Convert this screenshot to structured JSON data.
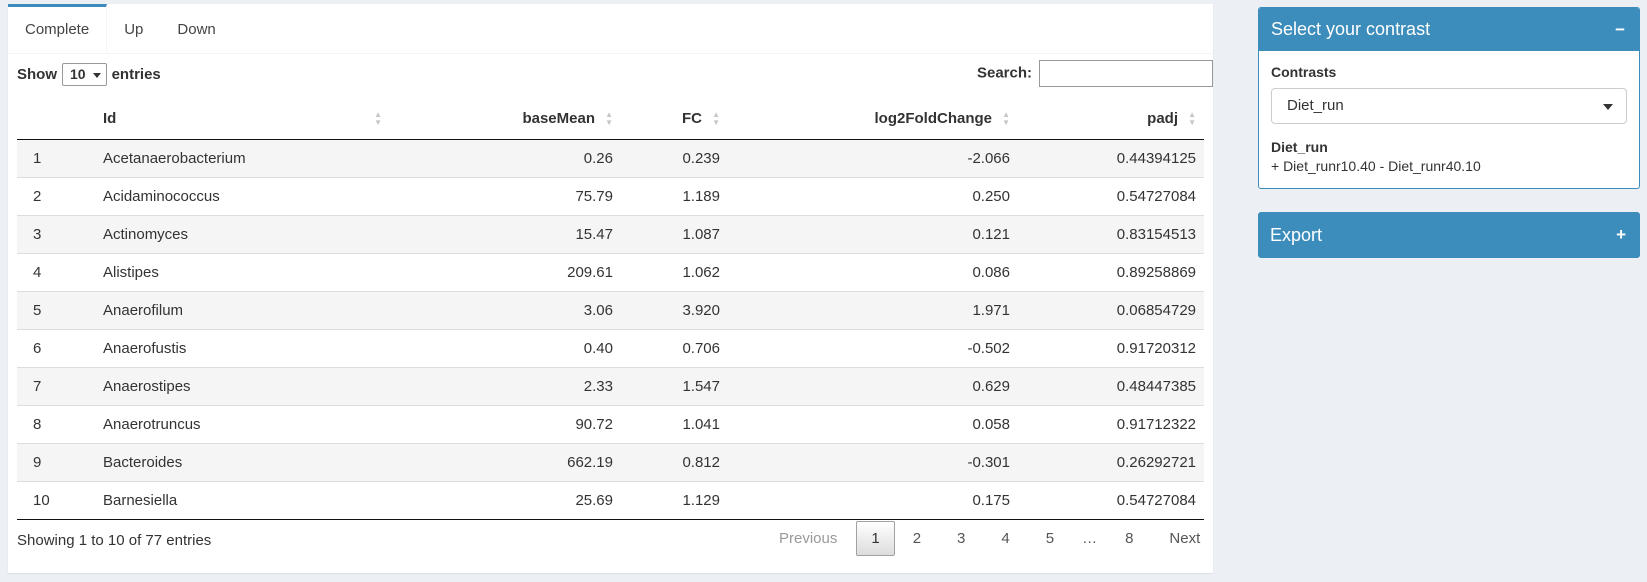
{
  "colors": {
    "primary": "#3c8dbc",
    "page_bg": "#ecf0f5",
    "stripe": "#f5f5f5"
  },
  "tabs": [
    {
      "label": "Complete",
      "active": true
    },
    {
      "label": "Up",
      "active": false
    },
    {
      "label": "Down",
      "active": false
    }
  ],
  "length_control": {
    "show_label": "Show",
    "selected": "10",
    "entries_label": "entries",
    "caret_icon": "caret-down"
  },
  "search": {
    "label": "Search:",
    "value": "",
    "placeholder": ""
  },
  "table": {
    "row_keys": [
      "index",
      "id",
      "baseMean",
      "fc",
      "log2fc",
      "padj"
    ],
    "columns": [
      {
        "label": "",
        "sortable": false,
        "numeric": false
      },
      {
        "label": "Id",
        "sortable": true,
        "numeric": false
      },
      {
        "label": "baseMean",
        "sortable": true,
        "numeric": true
      },
      {
        "label": "FC",
        "sortable": true,
        "numeric": true
      },
      {
        "label": "log2FoldChange",
        "sortable": true,
        "numeric": true
      },
      {
        "label": "padj",
        "sortable": true,
        "numeric": true
      }
    ],
    "sort_icons": {
      "asc": "▲",
      "desc": "▼"
    },
    "rows": [
      {
        "index": "1",
        "id": "Acetanaerobacterium",
        "baseMean": "0.26",
        "fc": "0.239",
        "log2fc": "-2.066",
        "padj": "0.44394125"
      },
      {
        "index": "2",
        "id": "Acidaminococcus",
        "baseMean": "75.79",
        "fc": "1.189",
        "log2fc": "0.250",
        "padj": "0.54727084"
      },
      {
        "index": "3",
        "id": "Actinomyces",
        "baseMean": "15.47",
        "fc": "1.087",
        "log2fc": "0.121",
        "padj": "0.83154513"
      },
      {
        "index": "4",
        "id": "Alistipes",
        "baseMean": "209.61",
        "fc": "1.062",
        "log2fc": "0.086",
        "padj": "0.89258869"
      },
      {
        "index": "5",
        "id": "Anaerofilum",
        "baseMean": "3.06",
        "fc": "3.920",
        "log2fc": "1.971",
        "padj": "0.06854729"
      },
      {
        "index": "6",
        "id": "Anaerofustis",
        "baseMean": "0.40",
        "fc": "0.706",
        "log2fc": "-0.502",
        "padj": "0.91720312"
      },
      {
        "index": "7",
        "id": "Anaerostipes",
        "baseMean": "2.33",
        "fc": "1.547",
        "log2fc": "0.629",
        "padj": "0.48447385"
      },
      {
        "index": "8",
        "id": "Anaerotruncus",
        "baseMean": "90.72",
        "fc": "1.041",
        "log2fc": "0.058",
        "padj": "0.91712322"
      },
      {
        "index": "9",
        "id": "Bacteroides",
        "baseMean": "662.19",
        "fc": "0.812",
        "log2fc": "-0.301",
        "padj": "0.26292721"
      },
      {
        "index": "10",
        "id": "Barnesiella",
        "baseMean": "25.69",
        "fc": "1.129",
        "log2fc": "0.175",
        "padj": "0.54727084"
      }
    ]
  },
  "footer": {
    "info": "Showing 1 to 10 of 77 entries",
    "pagination": {
      "previous_label": "Previous",
      "pages": [
        "1",
        "2",
        "3",
        "4",
        "5",
        "…",
        "8"
      ],
      "current": "1",
      "next_label": "Next"
    }
  },
  "sidebar": {
    "contrast_box": {
      "title": "Select your contrast",
      "collapse_icon_glyph": "−",
      "contrasts_label": "Contrasts",
      "selected_contrast": "Diet_run",
      "contrast_name": "Diet_run",
      "contrast_formula": "+ Diet_runr10.40 - Diet_runr40.10"
    },
    "export_box": {
      "title": "Export",
      "expand_icon_glyph": "+"
    }
  }
}
